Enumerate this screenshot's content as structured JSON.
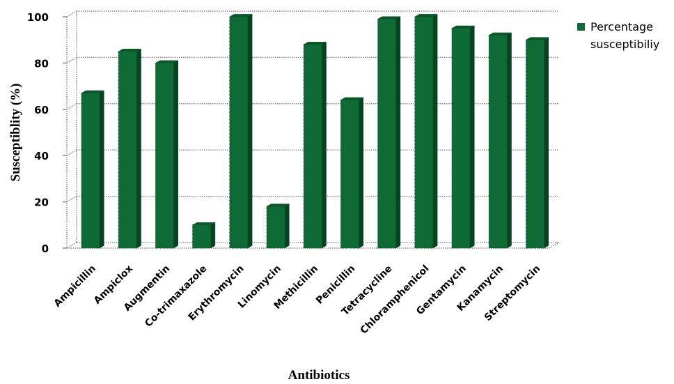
{
  "chart_data": {
    "type": "bar",
    "title": "",
    "xlabel": "Antibiotics",
    "ylabel": "Susceptiblity (%)",
    "ylim": [
      0,
      100
    ],
    "yticks": [
      0,
      20,
      40,
      60,
      80,
      100
    ],
    "grid": true,
    "legend_position": "top-right",
    "categories": [
      "Ampicillin",
      "Ampiclox",
      "Augmentin",
      "Co-trimaxazole",
      "Erythromycin",
      "Linomycin",
      "Methicillin",
      "Penicillin",
      "Tetracycline",
      "Chloramphenicol",
      "Gentamycin",
      "Kanamycin",
      "Streptomycin"
    ],
    "series": [
      {
        "name": "Percentage susceptibiliy",
        "color": "#0f6b35",
        "values": [
          67,
          85,
          80,
          10,
          100,
          18,
          88,
          64,
          99,
          100,
          95,
          92,
          90
        ]
      }
    ]
  },
  "legend": {
    "line1": "Percentage",
    "line2": "susceptibiliy"
  }
}
